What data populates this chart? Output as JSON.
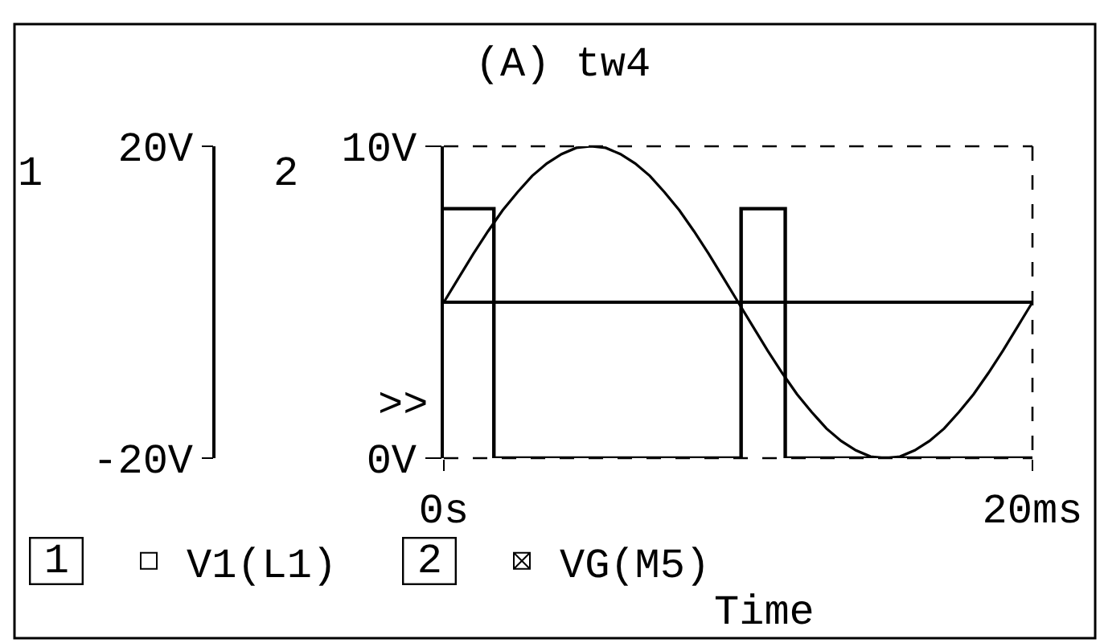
{
  "chart_data": {
    "type": "line",
    "title": "(A) tw4",
    "xlabel": "Time",
    "ylabel": "2",
    "y2label": "1",
    "x": [
      0,
      0.5,
      1,
      1.5,
      2,
      2.5,
      3,
      3.5,
      4,
      4.5,
      5,
      5.5,
      6,
      6.5,
      7,
      7.5,
      8,
      8.5,
      9,
      9.5,
      10,
      10.5,
      11,
      11.5,
      12,
      12.5,
      13,
      13.5,
      14,
      14.5,
      15,
      15.5,
      16,
      16.5,
      17,
      17.5,
      18,
      18.5,
      19,
      19.5,
      20
    ],
    "xlim": [
      0,
      20
    ],
    "xticks": [
      {
        "value": 0,
        "label": "0s"
      },
      {
        "value": 20,
        "label": "20ms"
      }
    ],
    "ylim": [
      0,
      10
    ],
    "yticks": [
      {
        "value": 0,
        "label": "0V"
      },
      {
        "value": 10,
        "label": "10V"
      }
    ],
    "y2lim": [
      -20,
      20
    ],
    "y2ticks": [
      {
        "value": -20,
        "label": "-20V"
      },
      {
        "value": 20,
        "label": "20V"
      }
    ],
    "series": [
      {
        "name": "V1(L1)",
        "color": "#000000",
        "axis": "y2",
        "values": [
          0,
          3.1,
          6.2,
          9.1,
          11.8,
          14.1,
          16.2,
          17.8,
          19.0,
          19.8,
          20,
          19.8,
          19.0,
          17.8,
          16.2,
          14.1,
          11.8,
          9.1,
          6.2,
          3.1,
          0,
          -3.1,
          -6.2,
          -9.1,
          -11.8,
          -14.1,
          -16.2,
          -17.8,
          -19.0,
          -19.8,
          -20,
          -19.8,
          -19.0,
          -17.8,
          -16.2,
          -14.1,
          -11.8,
          -9.1,
          -6.2,
          -3.1,
          0
        ]
      },
      {
        "name": "VG(M5)",
        "color": "#000000",
        "type": "step",
        "x": [
          0,
          1.7,
          10.1,
          11.6,
          20
        ],
        "values": [
          8,
          0,
          8,
          0,
          0
        ]
      }
    ],
    "ref_lines": [
      {
        "axis": "y2",
        "value": 0,
        "color": "#000000"
      }
    ],
    "annotations": [
      ">>"
    ],
    "legend": "bottom"
  }
}
